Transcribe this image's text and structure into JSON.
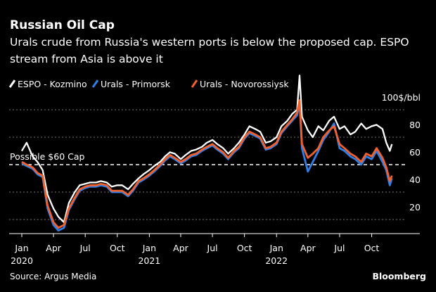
{
  "header": {
    "title": "Russian Oil Cap",
    "subtitle_line1": "Urals crude from Russia's western ports is below the proposed cap. ESPO",
    "subtitle_line2": "stream from Asia is above it"
  },
  "footer": {
    "source": "Source: Argus Media",
    "brand": "Bloomberg"
  },
  "chart_data": {
    "type": "line",
    "title": "Russian Oil Cap",
    "ylabel": "$/bbl",
    "ylim": [
      10,
      105
    ],
    "yticks": [
      {
        "value": 100,
        "label": "100$/bbl"
      },
      {
        "value": 80,
        "label": "80"
      },
      {
        "value": 60,
        "label": "60"
      },
      {
        "value": 40,
        "label": "40"
      },
      {
        "value": 20,
        "label": "20"
      }
    ],
    "xticks": [
      {
        "date": "2020-01-01",
        "label": "Jan",
        "year": "2020"
      },
      {
        "date": "2020-04-01",
        "label": "Apr",
        "year": ""
      },
      {
        "date": "2020-07-01",
        "label": "Jul",
        "year": ""
      },
      {
        "date": "2020-10-01",
        "label": "Oct",
        "year": ""
      },
      {
        "date": "2021-01-01",
        "label": "Jan",
        "year": "2021"
      },
      {
        "date": "2021-04-01",
        "label": "Apr",
        "year": ""
      },
      {
        "date": "2021-07-01",
        "label": "Jul",
        "year": ""
      },
      {
        "date": "2021-10-01",
        "label": "Oct",
        "year": ""
      },
      {
        "date": "2022-01-01",
        "label": "Jan",
        "year": "2022"
      },
      {
        "date": "2022-04-01",
        "label": "Apr",
        "year": ""
      },
      {
        "date": "2022-07-01",
        "label": "Jul",
        "year": ""
      },
      {
        "date": "2022-10-01",
        "label": "Oct",
        "year": ""
      }
    ],
    "grid": true,
    "legend_placement": "top-left",
    "annotation": {
      "value": 60,
      "label": "Possible $60 Cap"
    },
    "x": [
      "2020-01-01",
      "2020-01-15",
      "2020-02-01",
      "2020-02-15",
      "2020-03-01",
      "2020-03-15",
      "2020-04-01",
      "2020-04-15",
      "2020-05-01",
      "2020-05-15",
      "2020-06-01",
      "2020-06-15",
      "2020-07-01",
      "2020-07-15",
      "2020-08-01",
      "2020-08-15",
      "2020-09-01",
      "2020-09-15",
      "2020-10-01",
      "2020-10-15",
      "2020-11-01",
      "2020-11-15",
      "2020-12-01",
      "2020-12-15",
      "2021-01-01",
      "2021-01-15",
      "2021-02-01",
      "2021-02-15",
      "2021-03-01",
      "2021-03-15",
      "2021-04-01",
      "2021-04-15",
      "2021-05-01",
      "2021-05-15",
      "2021-06-01",
      "2021-06-15",
      "2021-07-01",
      "2021-07-15",
      "2021-08-01",
      "2021-08-15",
      "2021-09-01",
      "2021-09-15",
      "2021-10-01",
      "2021-10-15",
      "2021-11-01",
      "2021-11-15",
      "2021-12-01",
      "2021-12-15",
      "2022-01-01",
      "2022-01-15",
      "2022-02-01",
      "2022-02-15",
      "2022-03-01",
      "2022-03-08",
      "2022-03-15",
      "2022-04-01",
      "2022-04-15",
      "2022-05-01",
      "2022-05-15",
      "2022-06-01",
      "2022-06-15",
      "2022-07-01",
      "2022-07-15",
      "2022-08-01",
      "2022-08-15",
      "2022-09-01",
      "2022-09-15",
      "2022-10-01",
      "2022-10-15",
      "2022-11-01",
      "2022-11-12",
      "2022-11-22",
      "2022-11-28"
    ],
    "series": [
      {
        "name": "ESPO - Kozmino",
        "color": "#ffffff",
        "values": [
          70,
          76,
          66,
          62,
          56,
          38,
          28,
          22,
          18,
          32,
          40,
          45,
          46,
          47,
          47,
          48,
          47,
          44,
          45,
          45,
          42,
          46,
          50,
          53,
          56,
          59,
          62,
          66,
          69,
          68,
          64,
          67,
          70,
          71,
          73,
          76,
          78,
          75,
          72,
          68,
          72,
          76,
          82,
          88,
          86,
          84,
          76,
          77,
          80,
          88,
          92,
          97,
          100,
          125,
          95,
          85,
          80,
          88,
          85,
          92,
          95,
          86,
          88,
          82,
          84,
          90,
          86,
          88,
          89,
          86,
          76,
          70,
          75
        ]
      },
      {
        "name": "Urals - Primorsk",
        "color": "#2f7fe6",
        "values": [
          61,
          59,
          57,
          53,
          51,
          28,
          16,
          12,
          14,
          27,
          35,
          41,
          43,
          44,
          44,
          45,
          44,
          40,
          40,
          40,
          37,
          41,
          47,
          49,
          52,
          55,
          59,
          63,
          66,
          64,
          61,
          63,
          66,
          67,
          70,
          72,
          74,
          71,
          68,
          64,
          69,
          72,
          79,
          83,
          81,
          79,
          71,
          72,
          75,
          83,
          88,
          92,
          96,
          105,
          72,
          55,
          62,
          70,
          78,
          84,
          90,
          72,
          70,
          66,
          64,
          60,
          66,
          64,
          70,
          62,
          56,
          45,
          50
        ]
      },
      {
        "name": "Urals - Novorossiysk",
        "color": "#f2612d",
        "values": [
          62,
          60,
          58,
          54,
          52,
          30,
          18,
          14,
          16,
          28,
          36,
          42,
          44,
          45,
          45,
          46,
          45,
          41,
          41,
          41,
          38,
          42,
          48,
          50,
          53,
          56,
          60,
          64,
          67,
          65,
          62,
          64,
          67,
          68,
          71,
          73,
          75,
          72,
          69,
          65,
          70,
          73,
          80,
          84,
          82,
          80,
          72,
          73,
          76,
          84,
          89,
          93,
          98,
          107,
          75,
          65,
          68,
          72,
          80,
          85,
          88,
          75,
          72,
          68,
          66,
          62,
          68,
          66,
          72,
          65,
          58,
          48,
          52
        ]
      }
    ]
  }
}
